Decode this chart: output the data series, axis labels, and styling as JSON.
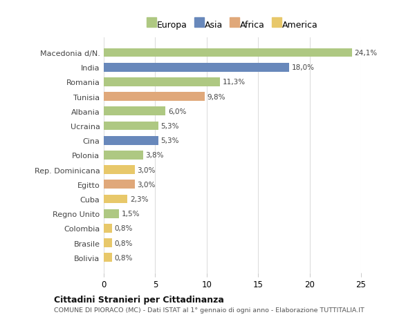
{
  "countries": [
    "Bolivia",
    "Brasile",
    "Colombia",
    "Regno Unito",
    "Cuba",
    "Egitto",
    "Rep. Dominicana",
    "Polonia",
    "Cina",
    "Ucraina",
    "Albania",
    "Tunisia",
    "Romania",
    "India",
    "Macedonia d/N."
  ],
  "values": [
    0.8,
    0.8,
    0.8,
    1.5,
    2.3,
    3.0,
    3.0,
    3.8,
    5.3,
    5.3,
    6.0,
    9.8,
    11.3,
    18.0,
    24.1
  ],
  "colors": [
    "#e8c86a",
    "#e8c86a",
    "#e8c86a",
    "#aec882",
    "#e8c86a",
    "#e0a87a",
    "#e8c86a",
    "#aec882",
    "#6888bb",
    "#aec882",
    "#aec882",
    "#e0a87a",
    "#aec882",
    "#6888bb",
    "#aec882"
  ],
  "labels": [
    "0,8%",
    "0,8%",
    "0,8%",
    "1,5%",
    "2,3%",
    "3,0%",
    "3,0%",
    "3,8%",
    "5,3%",
    "5,3%",
    "6,0%",
    "9,8%",
    "11,3%",
    "18,0%",
    "24,1%"
  ],
  "legend_labels": [
    "Europa",
    "Asia",
    "Africa",
    "America"
  ],
  "legend_colors": [
    "#aec882",
    "#6888bb",
    "#e0a87a",
    "#e8c86a"
  ],
  "title": "Cittadini Stranieri per Cittadinanza",
  "subtitle": "COMUNE DI PIORACO (MC) - Dati ISTAT al 1° gennaio di ogni anno - Elaborazione TUTTITALIA.IT",
  "xlim": [
    0,
    25
  ],
  "xticks": [
    0,
    5,
    10,
    15,
    20,
    25
  ],
  "bg_color": "#ffffff",
  "grid_color": "#dddddd",
  "bar_height": 0.6
}
